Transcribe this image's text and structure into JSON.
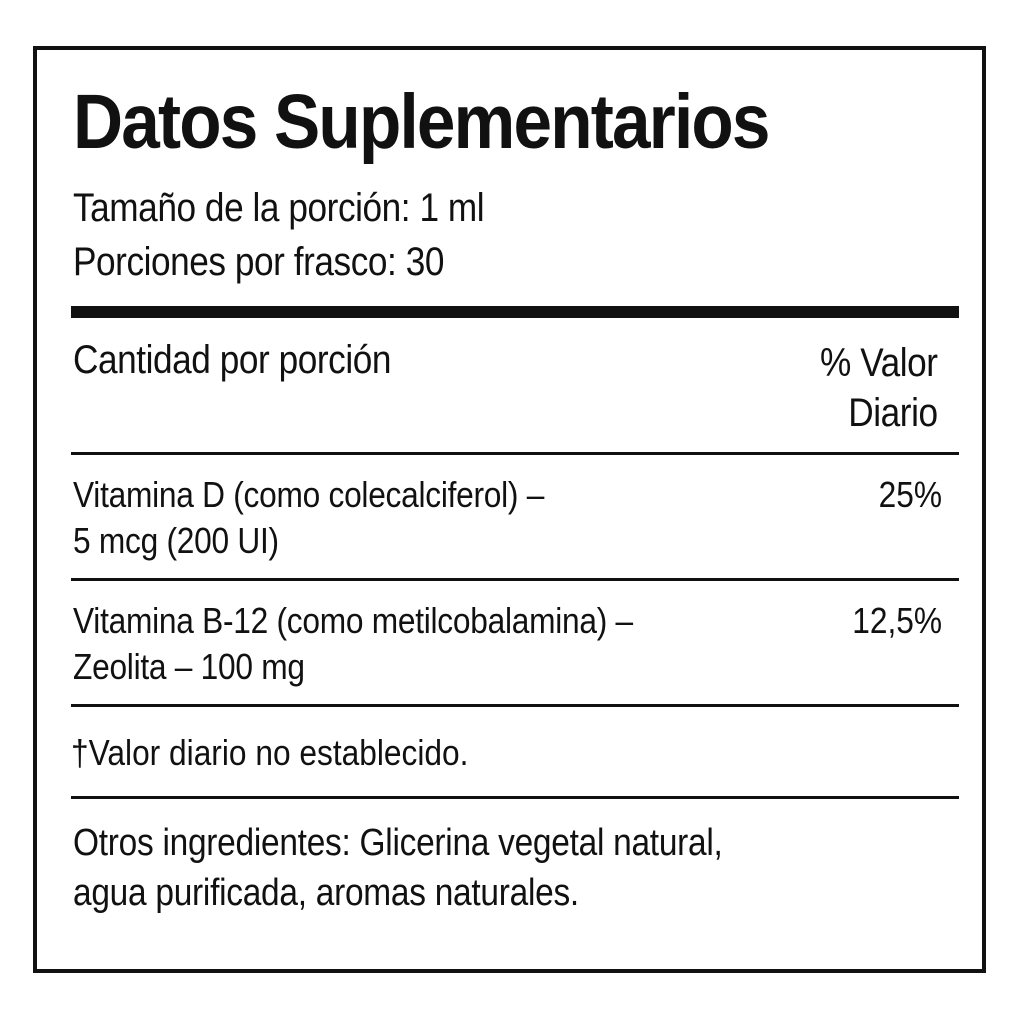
{
  "title": "Datos Suplementarios",
  "serving_size": "Tamaño de la porción: 1 ml",
  "servings_per_container": "Porciones por frasco: 30",
  "header": {
    "amount_label": "Cantidad por porción",
    "dv_label_line1": "% Valor",
    "dv_label_line2": "Diario"
  },
  "nutrients": [
    {
      "line1": "Vitamina D (como colecalciferol) –",
      "line2": "5 mcg (200 UI)",
      "dv": "25%"
    },
    {
      "line1": "Vitamina B-12 (como metilcobalamina) –",
      "line2": "Zeolita – 100 mg",
      "dv": "12,5%"
    }
  ],
  "footnote": {
    "symbol": "†",
    "text": "Valor diario no establecido."
  },
  "other_ingredients": {
    "line1": "Otros ingredientes: Glicerina vegetal natural,",
    "line2": "agua purificada, aromas naturales."
  }
}
